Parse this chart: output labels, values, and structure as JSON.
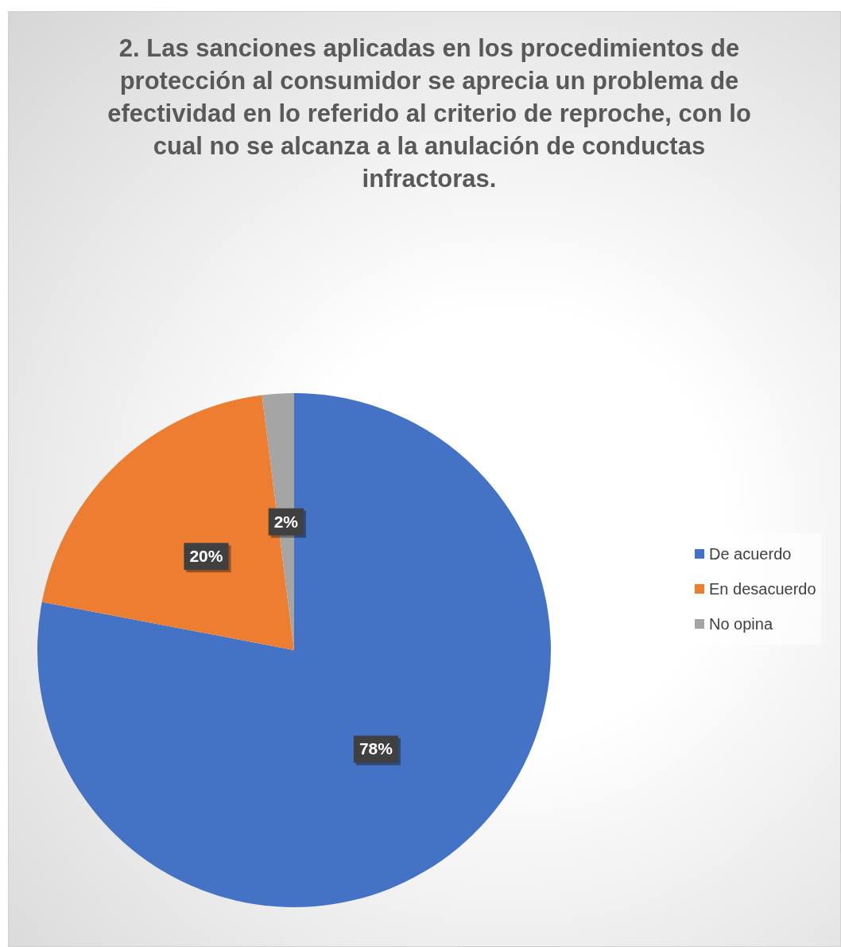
{
  "chart_data": {
    "type": "pie",
    "title": "2. Las sanciones aplicadas en los procedimientos de protección al consumidor se aprecia un problema de efectividad en lo referido al criterio de reproche, con lo cual no se alcanza a la anulación de conductas infractoras.",
    "categories": [
      "De acuerdo",
      "En desacuerdo",
      "No opina"
    ],
    "values": [
      78,
      20,
      2
    ],
    "colors": [
      "#4472c4",
      "#ed7d31",
      "#a5a5a5"
    ],
    "value_labels": [
      "78%",
      "20%",
      "2%"
    ],
    "legend": "right"
  }
}
